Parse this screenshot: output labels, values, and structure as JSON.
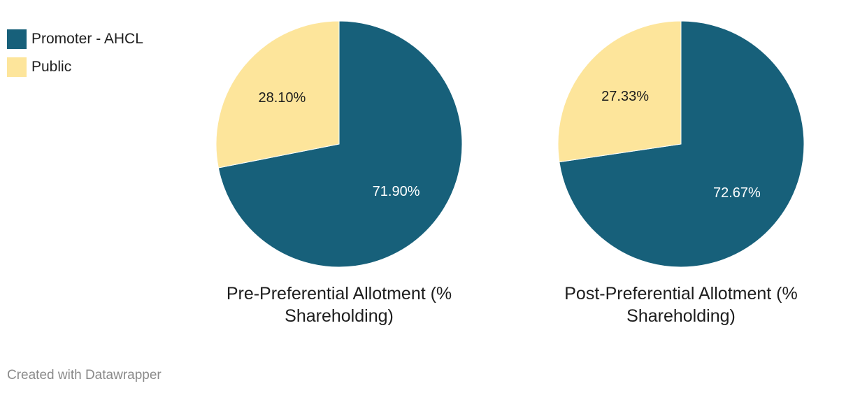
{
  "legend": [
    {
      "label": "Promoter - AHCL",
      "color": "#17607a"
    },
    {
      "label": "Public",
      "color": "#fde59b"
    }
  ],
  "chart_data": [
    {
      "type": "pie",
      "title_lines": [
        "Pre-Preferential Allotment (%",
        "Shareholding)"
      ],
      "slices": [
        {
          "name": "Promoter - AHCL",
          "value": 71.9,
          "label": "71.90%"
        },
        {
          "name": "Public",
          "value": 28.1,
          "label": "28.10%"
        }
      ]
    },
    {
      "type": "pie",
      "title_lines": [
        "Post-Preferential Allotment (%",
        "Shareholding)"
      ],
      "slices": [
        {
          "name": "Promoter - AHCL",
          "value": 72.67,
          "label": "72.67%"
        },
        {
          "name": "Public",
          "value": 27.33,
          "label": "27.33%"
        }
      ]
    }
  ],
  "colors": {
    "promoter": "#17607a",
    "public": "#fde59b",
    "label_on_dark": "#ffffff",
    "label_on_light": "#1d1d1d"
  },
  "footer": {
    "credit": "Created with Datawrapper"
  }
}
